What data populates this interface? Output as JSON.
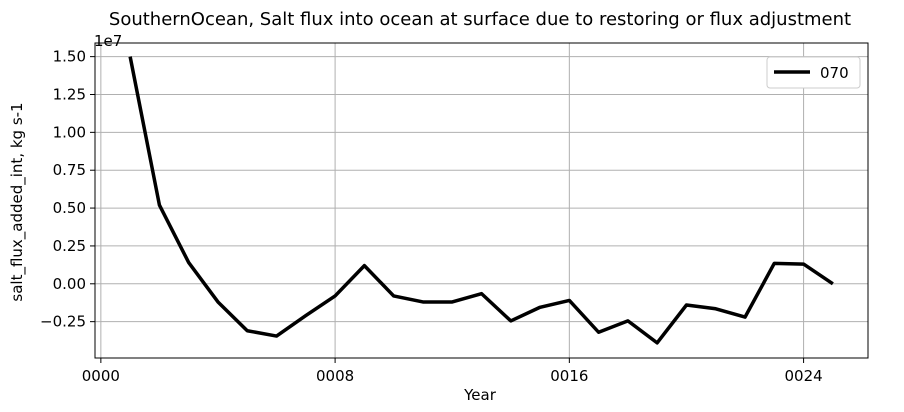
{
  "chart_data": {
    "type": "line",
    "title": "SouthernOcean, Salt flux into ocean at surface due to restoring or flux adjustment",
    "xlabel": "Year",
    "ylabel": "salt_flux_added_int, kg s-1",
    "y_offset_label": "1e7",
    "xlim": [
      -0.2,
      26.2
    ],
    "ylim": [
      -4.9,
      15.9
    ],
    "y_scale_factor": 10000000,
    "grid": true,
    "legend_position": "top-right",
    "x_ticks": [
      0,
      8,
      16,
      24
    ],
    "x_tick_labels": [
      "0000",
      "0008",
      "0016",
      "0024"
    ],
    "y_ticks": [
      -2.5,
      0,
      2.5,
      5,
      7.5,
      10,
      12.5,
      15
    ],
    "y_tick_labels": [
      "−0.25",
      "0.00",
      "0.25",
      "0.50",
      "0.75",
      "1.00",
      "1.25",
      "1.50"
    ],
    "x": [
      1,
      2,
      3,
      4,
      5,
      6,
      7,
      8,
      9,
      10,
      11,
      12,
      13,
      14,
      15,
      16,
      17,
      18,
      19,
      20,
      21,
      22,
      23,
      24,
      25
    ],
    "series": [
      {
        "name": "070",
        "color": "#000000",
        "values": [
          15.0,
          5.2,
          1.4,
          -1.2,
          -3.1,
          -3.45,
          -2.1,
          -0.8,
          1.2,
          -0.8,
          -1.2,
          -1.2,
          -0.65,
          -2.45,
          -1.55,
          -1.1,
          -3.2,
          -2.45,
          -3.9,
          -1.4,
          -1.65,
          -2.2,
          1.35,
          1.3,
          0.0
        ]
      }
    ]
  }
}
